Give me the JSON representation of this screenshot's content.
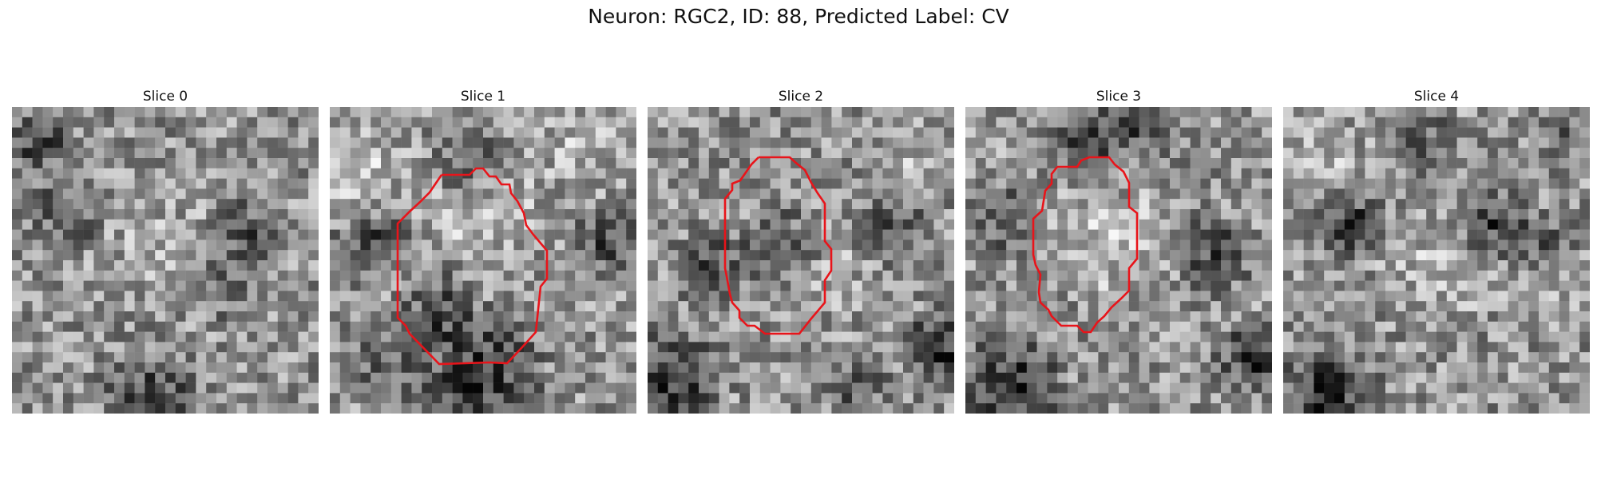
{
  "figure": {
    "title": "Neuron: RGC2, ID: 88, Predicted Label: CV"
  },
  "colors": {
    "contour": "#e8141a",
    "background": "#ffffff",
    "colormap": "grayscale"
  },
  "panels": [
    {
      "title": "Slice 0",
      "has_contour": false
    },
    {
      "title": "Slice 1",
      "has_contour": true
    },
    {
      "title": "Slice 2",
      "has_contour": true
    },
    {
      "title": "Slice 3",
      "has_contour": true
    },
    {
      "title": "Slice 4",
      "has_contour": false
    }
  ]
}
